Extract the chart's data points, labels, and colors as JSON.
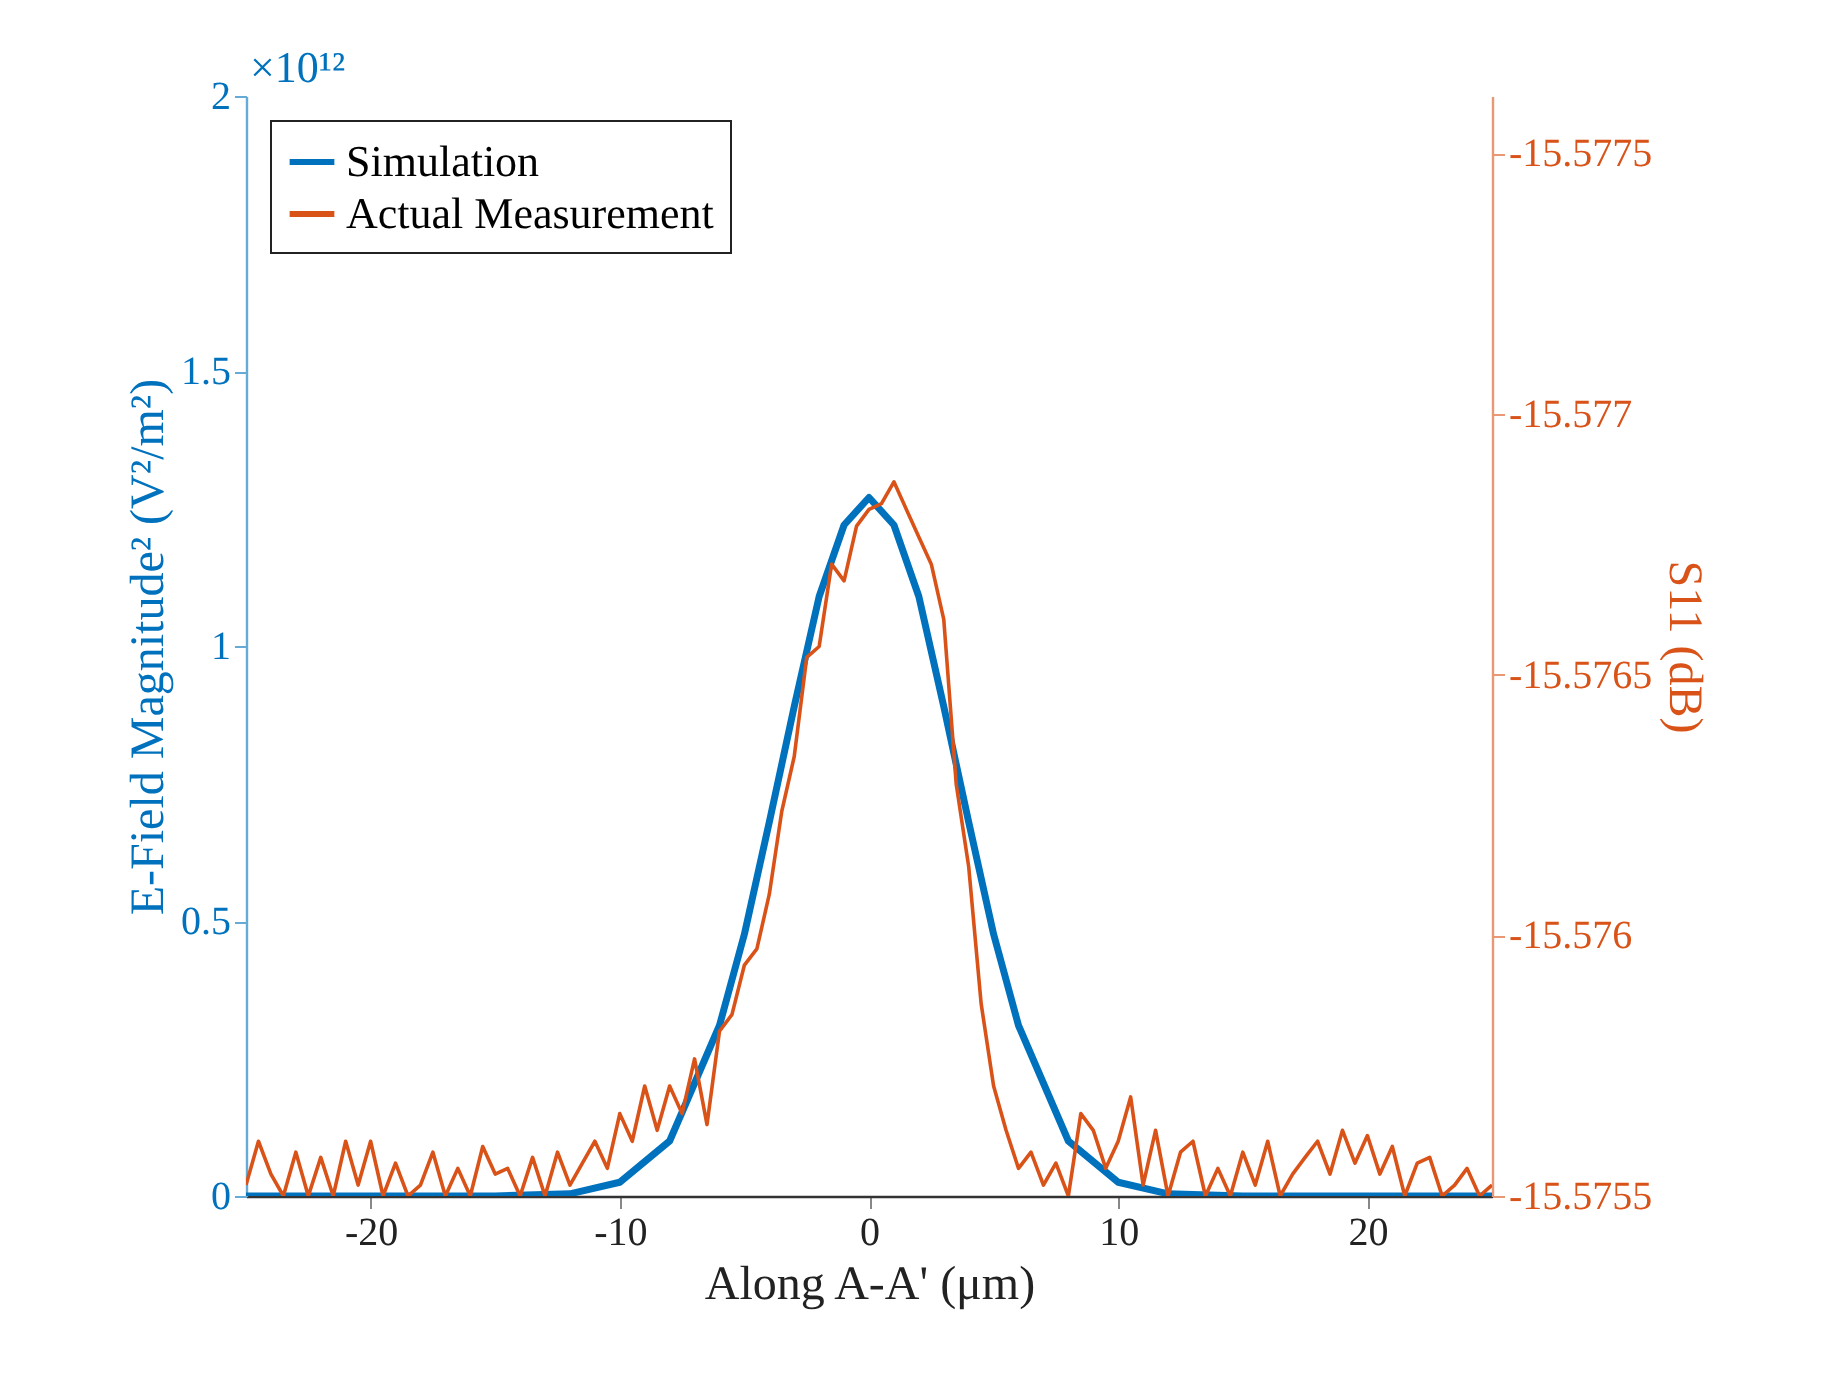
{
  "chart_data": {
    "type": "line",
    "xlabel": "Along A-A' (μm)",
    "ylabel": "E-Field Magnitude² (V²/m²)",
    "y2label": "S11 (dB)",
    "annotations": [
      "×10¹²"
    ],
    "xlim": [
      -25,
      25
    ],
    "xticks": [
      -20,
      -10,
      0,
      10,
      20
    ],
    "ylim": [
      0,
      2
    ],
    "yticks": [
      0,
      0.5,
      1,
      1.5,
      2
    ],
    "y2lim": [
      -15.5755,
      -15.57761
    ],
    "y2ticks": [
      -15.5775,
      -15.577,
      -15.5765,
      -15.576,
      -15.5755
    ],
    "legend": "top left",
    "grid": false,
    "series": [
      {
        "name": "Simulation",
        "color": "#0072bd",
        "x": [
          -25,
          -15,
          -12,
          -10,
          -8,
          -6,
          -5,
          -4,
          -3,
          -2,
          -1,
          0,
          1,
          2,
          3,
          4,
          5,
          6,
          8,
          10,
          12,
          15,
          25
        ],
        "values": [
          0,
          0,
          0.004,
          0.025,
          0.1,
          0.31,
          0.476,
          0.68,
          0.89,
          1.09,
          1.22,
          1.27,
          1.22,
          1.09,
          0.89,
          0.68,
          0.476,
          0.31,
          0.1,
          0.025,
          0.004,
          0,
          0
        ]
      },
      {
        "name": "Actual Measurement",
        "color": "#d95319",
        "axis": "y2",
        "x": [
          -25,
          -24.5,
          -24,
          -23.5,
          -23,
          -22.5,
          -22,
          -21.5,
          -21,
          -20.5,
          -20,
          -19.5,
          -19,
          -18.5,
          -18,
          -17.5,
          -17,
          -16.5,
          -16,
          -15.5,
          -15,
          -14.5,
          -14,
          -13.5,
          -13,
          -12.5,
          -12,
          -11.5,
          -11,
          -10.5,
          -10,
          -9.5,
          -9,
          -8.5,
          -8,
          -7.5,
          -7,
          -6.5,
          -6,
          -5.5,
          -5,
          -4.5,
          -4,
          -3.5,
          -3,
          -2.5,
          -2,
          -1.5,
          -1,
          -0.5,
          0,
          0.5,
          1,
          1.5,
          2,
          2.5,
          3,
          3.5,
          4,
          4.5,
          5,
          5.5,
          6,
          6.5,
          7,
          7.5,
          8,
          8.5,
          9,
          9.5,
          10,
          10.5,
          11,
          11.5,
          12,
          12.5,
          13,
          13.5,
          14,
          14.5,
          15,
          15.5,
          16,
          16.5,
          17,
          17.5,
          18,
          18.5,
          19,
          19.5,
          20,
          20.5,
          21,
          21.5,
          22,
          22.5,
          23,
          23.5,
          24,
          24.5,
          25
        ],
        "values": [
          -15.575521,
          -15.575605,
          -15.575542,
          -15.5755,
          -15.575584,
          -15.5755,
          -15.575574,
          -15.5755,
          -15.575605,
          -15.575521,
          -15.575605,
          -15.5755,
          -15.575563,
          -15.5755,
          -15.575521,
          -15.575584,
          -15.5755,
          -15.575553,
          -15.5755,
          -15.575595,
          -15.575542,
          -15.575553,
          -15.5755,
          -15.575574,
          -15.5755,
          -15.575584,
          -15.575521,
          -15.575563,
          -15.575605,
          -15.575553,
          -15.575658,
          -15.575605,
          -15.575711,
          -15.575626,
          -15.575711,
          -15.575658,
          -15.575763,
          -15.575637,
          -15.575816,
          -15.575848,
          -15.575943,
          -15.575974,
          -15.576079,
          -15.576238,
          -15.576343,
          -15.576533,
          -15.576554,
          -15.576712,
          -15.57668,
          -15.576785,
          -15.576817,
          -15.576828,
          -15.57687,
          -15.576817,
          -15.576764,
          -15.576712,
          -15.576606,
          -15.57629,
          -15.576132,
          -15.575869,
          -15.575711,
          -15.575626,
          -15.575553,
          -15.575584,
          -15.575521,
          -15.575563,
          -15.5755,
          -15.575658,
          -15.575626,
          -15.575553,
          -15.575605,
          -15.57569,
          -15.575521,
          -15.575626,
          -15.5755,
          -15.575584,
          -15.575605,
          -15.5755,
          -15.575553,
          -15.5755,
          -15.575584,
          -15.575521,
          -15.575605,
          -15.5755,
          -15.575542,
          -15.575574,
          -15.575605,
          -15.575542,
          -15.575626,
          -15.575563,
          -15.575616,
          -15.575542,
          -15.575595,
          -15.5755,
          -15.575563,
          -15.575574,
          -15.5755,
          -15.575521,
          -15.575553,
          -15.5755,
          -15.575521
        ]
      }
    ]
  }
}
